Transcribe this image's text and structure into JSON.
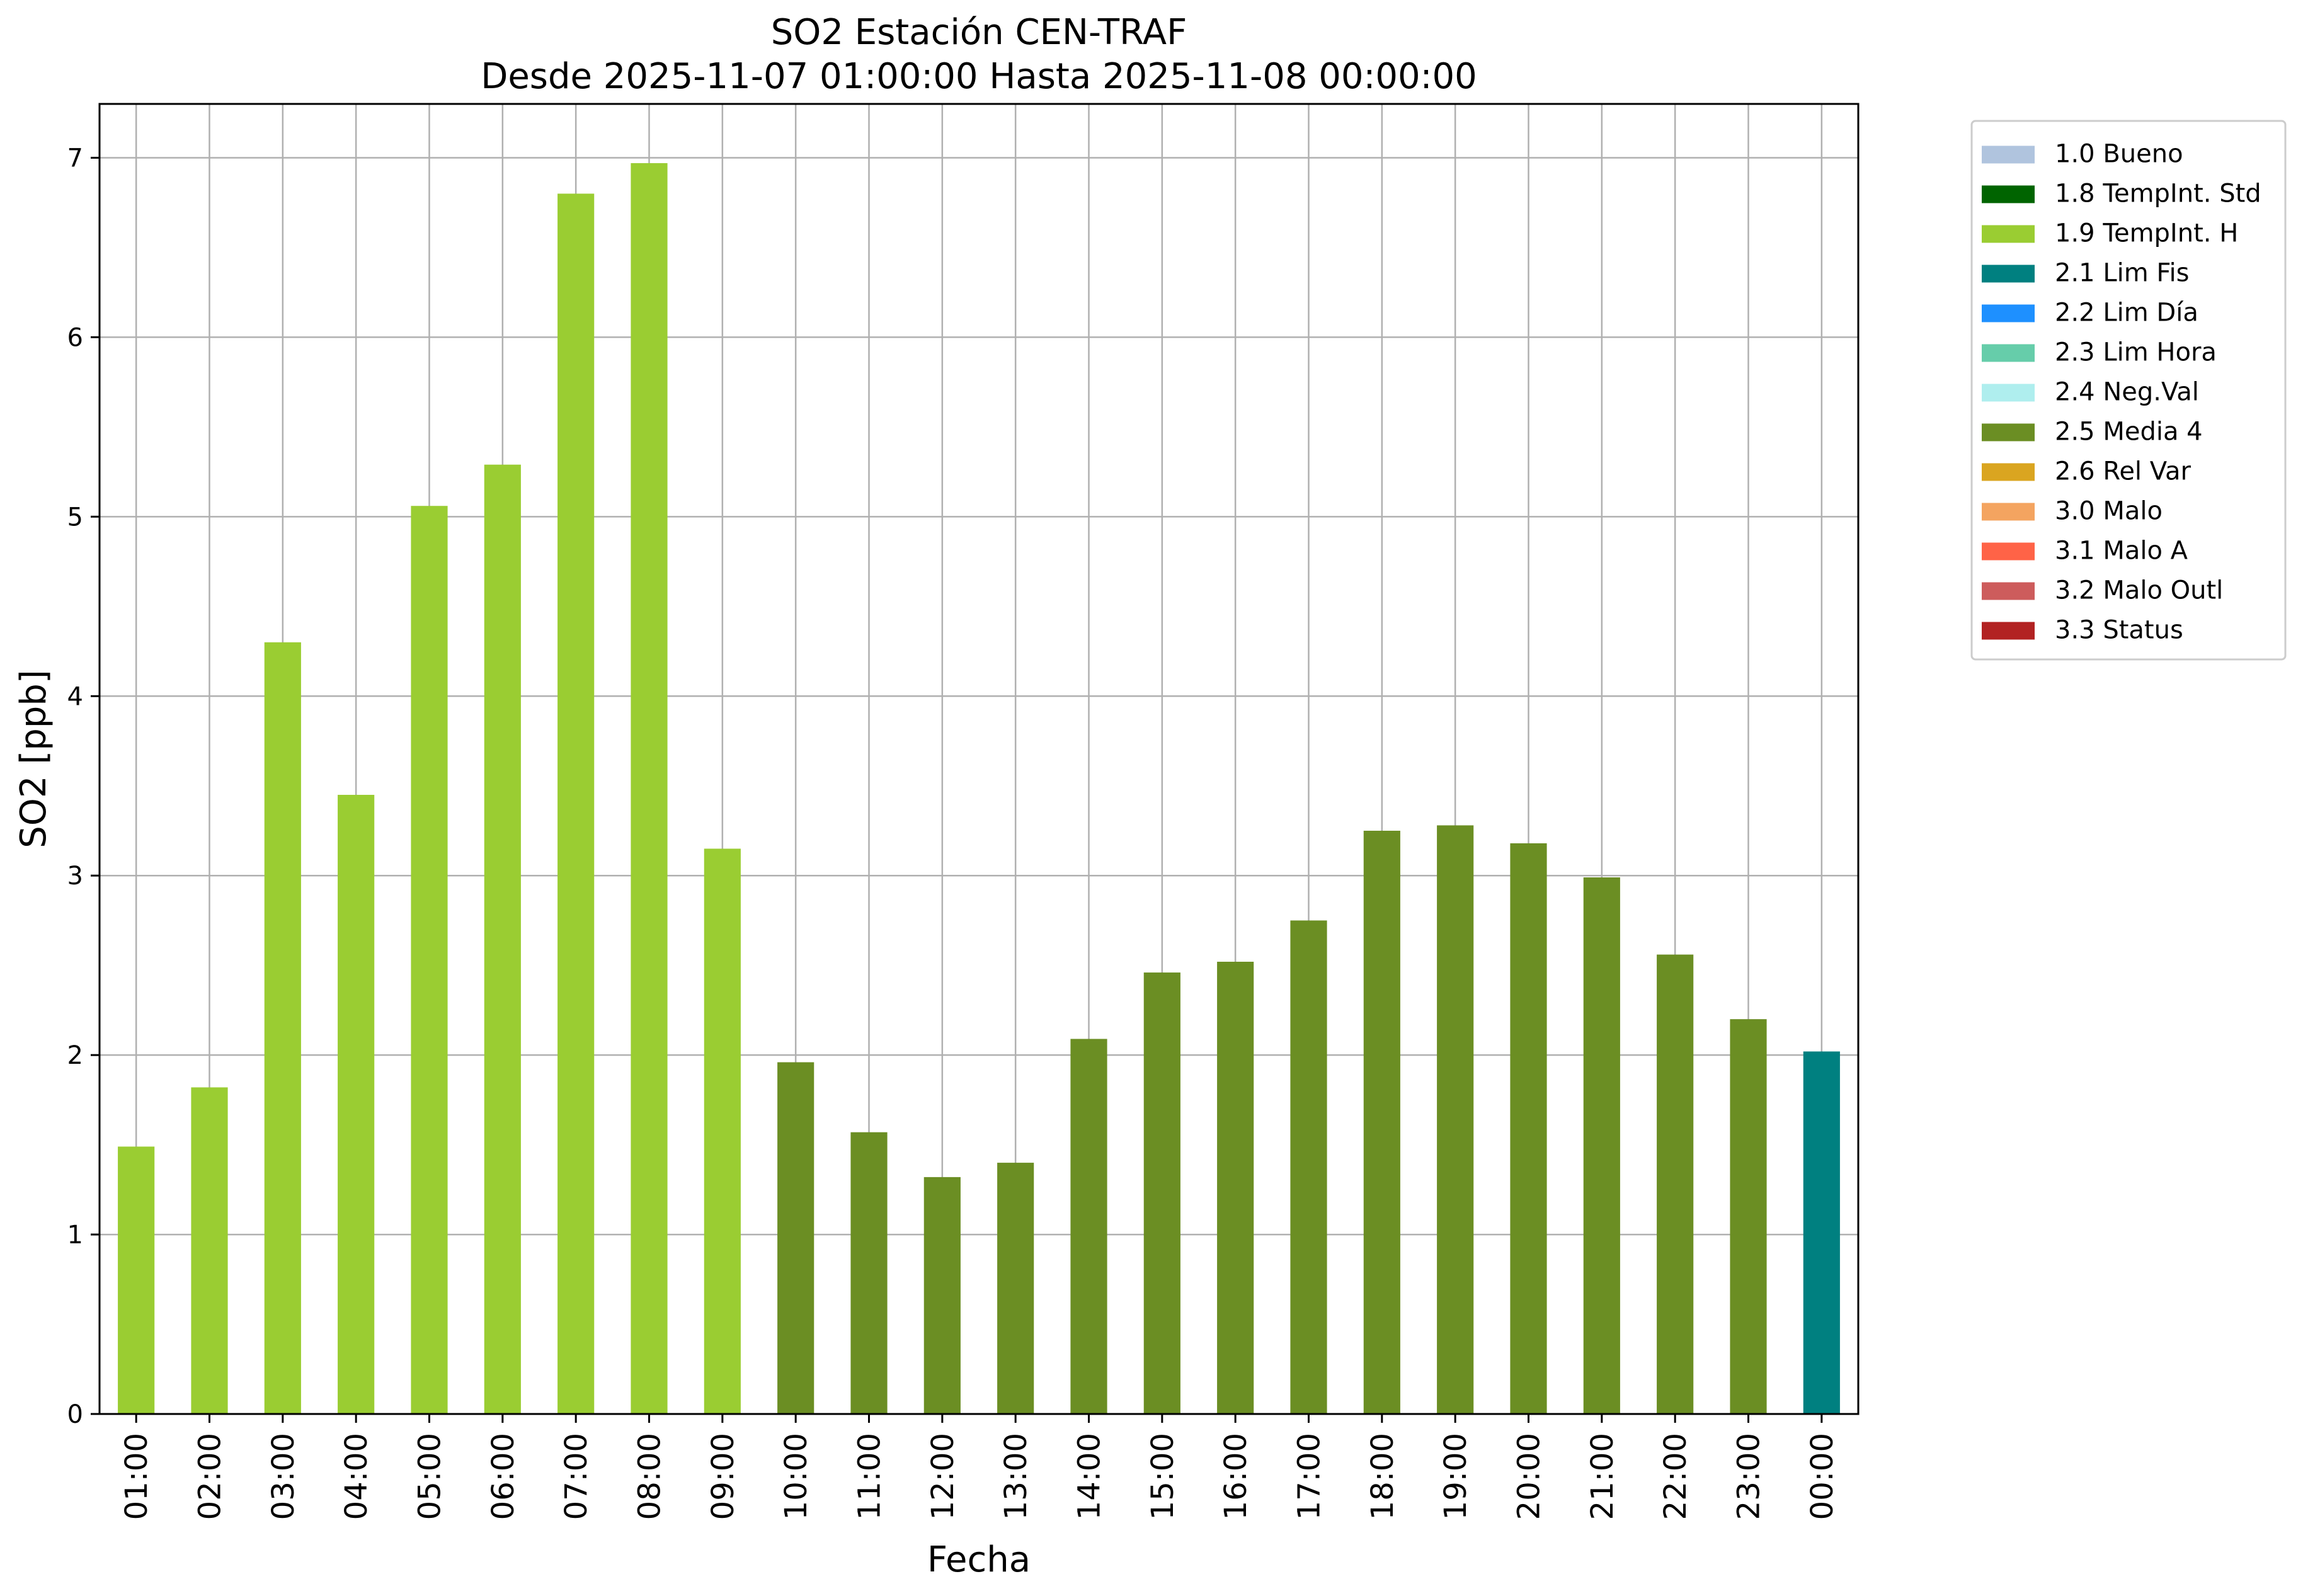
{
  "chart_data": {
    "type": "bar",
    "title": "SO2 Estación CEN-TRAF",
    "subtitle": "Desde 2025-11-07 01:00:00 Hasta 2025-11-08 00:00:00",
    "xlabel": "Fecha",
    "ylabel": "SO2 [ppb]",
    "ylim": [
      0,
      7.3
    ],
    "yticks": [
      0,
      1,
      2,
      3,
      4,
      5,
      6,
      7
    ],
    "grid": true,
    "legend_position": "outside-top-right",
    "categories": [
      "01:00",
      "02:00",
      "03:00",
      "04:00",
      "05:00",
      "06:00",
      "07:00",
      "08:00",
      "09:00",
      "10:00",
      "11:00",
      "12:00",
      "13:00",
      "14:00",
      "15:00",
      "16:00",
      "17:00",
      "18:00",
      "19:00",
      "20:00",
      "21:00",
      "22:00",
      "23:00",
      "00:00"
    ],
    "values": [
      1.49,
      1.82,
      4.3,
      3.45,
      5.06,
      5.29,
      6.8,
      6.97,
      3.15,
      1.96,
      1.57,
      1.32,
      1.4,
      2.09,
      2.46,
      2.52,
      2.75,
      3.25,
      3.28,
      3.18,
      2.99,
      2.56,
      2.2,
      2.02
    ],
    "flags": [
      "1.9",
      "1.9",
      "1.9",
      "1.9",
      "1.9",
      "1.9",
      "1.9",
      "1.9",
      "1.9",
      "2.5",
      "2.5",
      "2.5",
      "2.5",
      "2.5",
      "2.5",
      "2.5",
      "2.5",
      "2.5",
      "2.5",
      "2.5",
      "2.5",
      "2.5",
      "2.5",
      "2.1"
    ],
    "legend": [
      {
        "code": "1.0",
        "label": "1.0 Bueno",
        "color": "#b0c4de"
      },
      {
        "code": "1.8",
        "label": "1.8 TempInt. Std",
        "color": "#006400"
      },
      {
        "code": "1.9",
        "label": "1.9 TempInt. H",
        "color": "#9acd32"
      },
      {
        "code": "2.1",
        "label": "2.1 Lim Fis",
        "color": "#008080"
      },
      {
        "code": "2.2",
        "label": "2.2 Lim Día",
        "color": "#1e90ff"
      },
      {
        "code": "2.3",
        "label": "2.3 Lim Hora",
        "color": "#66cdaa"
      },
      {
        "code": "2.4",
        "label": "2.4 Neg.Val",
        "color": "#afeeee"
      },
      {
        "code": "2.5",
        "label": "2.5 Media 4",
        "color": "#6b8e23"
      },
      {
        "code": "2.6",
        "label": "2.6 Rel Var",
        "color": "#daa520"
      },
      {
        "code": "3.0",
        "label": "3.0 Malo",
        "color": "#f4a460"
      },
      {
        "code": "3.1",
        "label": "3.1 Malo A",
        "color": "#ff6347"
      },
      {
        "code": "3.2",
        "label": "3.2 Malo Outl",
        "color": "#cd5c5c"
      },
      {
        "code": "3.3",
        "label": "3.3 Status",
        "color": "#b22222"
      }
    ]
  }
}
